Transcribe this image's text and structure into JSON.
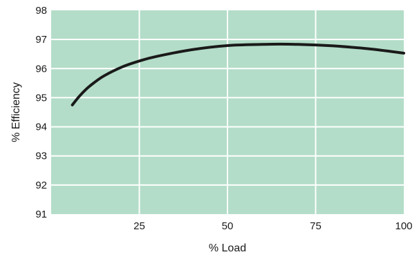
{
  "chart_data": {
    "type": "line",
    "title": "",
    "xlabel": "% Load",
    "ylabel": "% Efficiency",
    "xlim": [
      0,
      100
    ],
    "ylim": [
      91,
      98
    ],
    "x_ticks": [
      25,
      50,
      75,
      100
    ],
    "x_tick_labels": [
      "25",
      "50",
      "75",
      "100"
    ],
    "y_ticks": [
      91,
      92,
      93,
      94,
      95,
      96,
      97,
      98
    ],
    "y_tick_labels": [
      "91",
      "92",
      "93",
      "94",
      "95",
      "96",
      "97",
      "98"
    ],
    "grid": true,
    "legend": "none",
    "colors": {
      "plot_background": "#b3ddc8",
      "grid": "#ffffff",
      "line": "#1a1a1a"
    },
    "series": [
      {
        "x": [
          6,
          8,
          10,
          12,
          15,
          20,
          25,
          30,
          40,
          50,
          60,
          65,
          70,
          75,
          80,
          90,
          100
        ],
        "y": [
          94.75,
          95.05,
          95.3,
          95.5,
          95.75,
          96.05,
          96.26,
          96.42,
          96.65,
          96.79,
          96.83,
          96.84,
          96.83,
          96.81,
          96.78,
          96.68,
          96.53
        ]
      }
    ]
  }
}
